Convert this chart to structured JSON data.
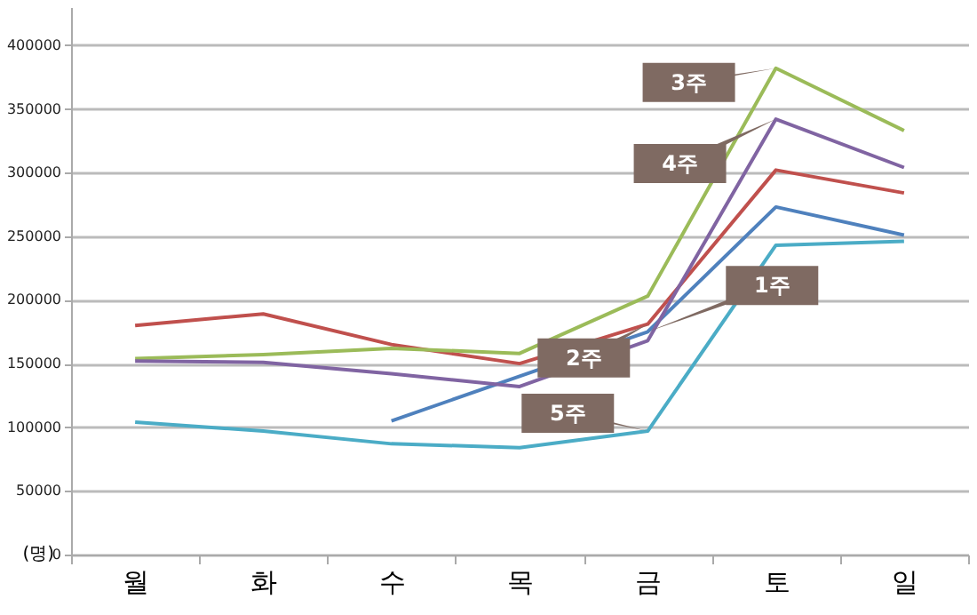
{
  "chart_data": {
    "type": "line",
    "ylabel": "(명)",
    "categories": [
      "월",
      "화",
      "수",
      "목",
      "금",
      "토",
      "일"
    ],
    "series": [
      {
        "name": "1주",
        "color": "#4f81bd",
        "values": [
          null,
          null,
          105000,
          140000,
          175000,
          273000,
          251000
        ]
      },
      {
        "name": "2주",
        "color": "#c0504d",
        "values": [
          180000,
          189000,
          165000,
          150000,
          181000,
          302000,
          284000
        ]
      },
      {
        "name": "3주",
        "color": "#9bbb59",
        "values": [
          154000,
          157000,
          162000,
          158000,
          203000,
          382000,
          333000
        ]
      },
      {
        "name": "4주",
        "color": "#8064a2",
        "values": [
          152000,
          151000,
          142000,
          132000,
          168000,
          342000,
          304000
        ]
      },
      {
        "name": "5주",
        "color": "#4bacc6",
        "values": [
          104000,
          97000,
          87000,
          84000,
          97000,
          243000,
          246000
        ]
      }
    ],
    "ylim": [
      0,
      430000
    ],
    "yticks": [
      0,
      50000,
      100000,
      150000,
      200000,
      250000,
      300000,
      350000,
      400000
    ],
    "grid": "y",
    "legend": false,
    "marker": "none",
    "line_style": "solid"
  }
}
